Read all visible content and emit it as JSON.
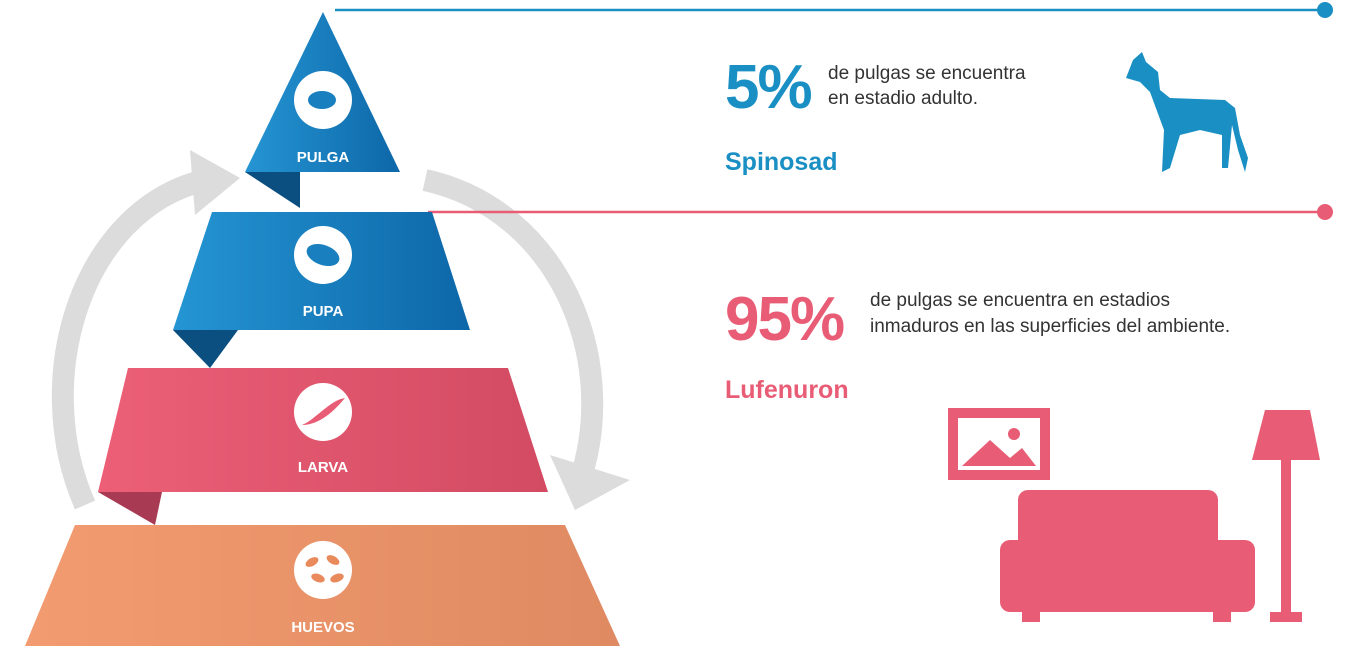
{
  "pyramid": {
    "levels": [
      {
        "label": "PULGA"
      },
      {
        "label": "PUPA"
      },
      {
        "label": "LARVA"
      },
      {
        "label": "HUEVOS"
      }
    ]
  },
  "adult": {
    "percent": "5%",
    "description": [
      "de pulgas se encuentra",
      "en estadio adulto."
    ],
    "treatment": "Spinosad"
  },
  "immature": {
    "percent": "95%",
    "description": [
      "de pulgas se encuentra en estadios",
      "inmaduros en las superficies del ambiente."
    ],
    "treatment": "Lufenuron"
  }
}
